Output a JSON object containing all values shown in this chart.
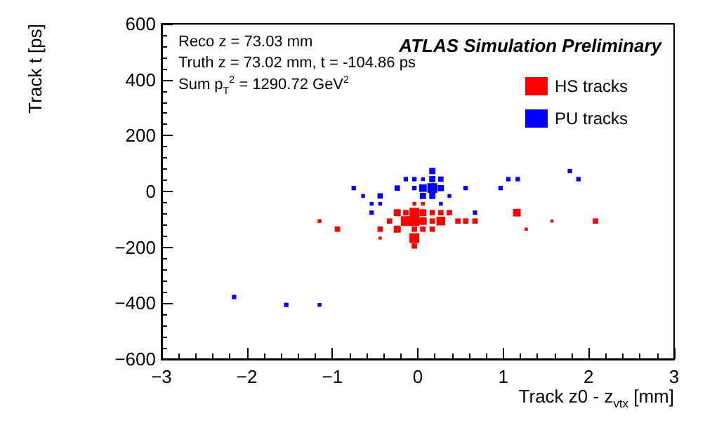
{
  "chart_data": {
    "type": "bubble",
    "title": "ATLAS Simulation Preliminary",
    "xlabel": "Track z0 - z$_{vtx}$ [mm]",
    "ylabel": "Track t [ps]",
    "annotations": [
      "Reco z = 73.03 mm",
      "Truth z = 73.02 mm, t = -104.86 ps",
      "Sum p$_{T}$$^{2}$ = 1290.72 GeV$^{2}$"
    ],
    "xlim": [
      -3,
      3
    ],
    "xticks": [
      -3,
      -2,
      -1,
      0,
      1,
      2,
      3
    ],
    "ylim": [
      -600,
      600
    ],
    "yticks": [
      -600,
      -400,
      -200,
      0,
      200,
      400,
      600
    ],
    "grid": false,
    "legend": "top right",
    "marker": "square",
    "series": [
      {
        "name": "HS tracks",
        "color": "#ff0000",
        "x": [
          -0.04,
          0.06,
          -0.24,
          -0.14,
          -0.04,
          0.06,
          0.17,
          0.27,
          0.37,
          1.16,
          -1.15,
          -0.33,
          -0.14,
          -0.04,
          0.06,
          0.17,
          0.27,
          0.47,
          0.56,
          0.67,
          1.57,
          2.08,
          -0.94,
          -0.44,
          -0.24,
          -0.04,
          0.06,
          0.17,
          1.27,
          -0.44,
          -0.04,
          -0.04
        ],
        "values": [
          -44,
          -44,
          -76,
          -76,
          -76,
          -76,
          -76,
          -76,
          -76,
          -76,
          -106,
          -106,
          -106,
          -106,
          -106,
          -106,
          -106,
          -106,
          -106,
          -106,
          -106,
          -106,
          -135,
          -135,
          -135,
          -135,
          -135,
          -135,
          -135,
          -167,
          -167,
          -195
        ],
        "sizes": [
          0.15,
          0.15,
          0.5,
          0.3,
          1,
          0.5,
          0.3,
          0.3,
          0.3,
          0.6,
          0.15,
          0.3,
          1,
          1,
          0.6,
          0.3,
          0.8,
          0.3,
          0.3,
          0.3,
          0.1,
          0.3,
          0.3,
          0.3,
          0.5,
          0.3,
          0.3,
          0.3,
          0.1,
          0.1,
          1,
          0.3
        ]
      },
      {
        "name": "PU tracks",
        "color": "#0000ff",
        "x": [
          0.17,
          -0.14,
          -0.04,
          0.06,
          0.17,
          0.27,
          -0.75,
          -0.24,
          -0.04,
          0.06,
          0.17,
          0.27,
          0.56,
          0.97,
          1.06,
          1.17,
          1.78,
          1.88,
          -0.64,
          -0.44,
          0.06,
          0.17,
          0.37,
          -0.54,
          -0.44,
          0.27,
          -0.54,
          0.67,
          -2.15,
          -1.54,
          -1.15
        ],
        "values": [
          73,
          44,
          44,
          44,
          44,
          44,
          12,
          12,
          12,
          12,
          12,
          12,
          12,
          12,
          44,
          44,
          73,
          44,
          -16,
          -16,
          -16,
          -16,
          -16,
          -44,
          -44,
          -44,
          -76,
          -76,
          -378,
          -406,
          -406
        ],
        "sizes": [
          0.4,
          0.2,
          0.2,
          0.15,
          0.4,
          0.3,
          0.2,
          0.3,
          0.2,
          0.6,
          1,
          0.4,
          0.2,
          0.2,
          0.2,
          0.2,
          0.2,
          0.2,
          0.15,
          0.3,
          0.4,
          0.4,
          0.15,
          0.15,
          0.15,
          0.15,
          0.2,
          0.2,
          0.2,
          0.2,
          0.15
        ]
      }
    ]
  }
}
